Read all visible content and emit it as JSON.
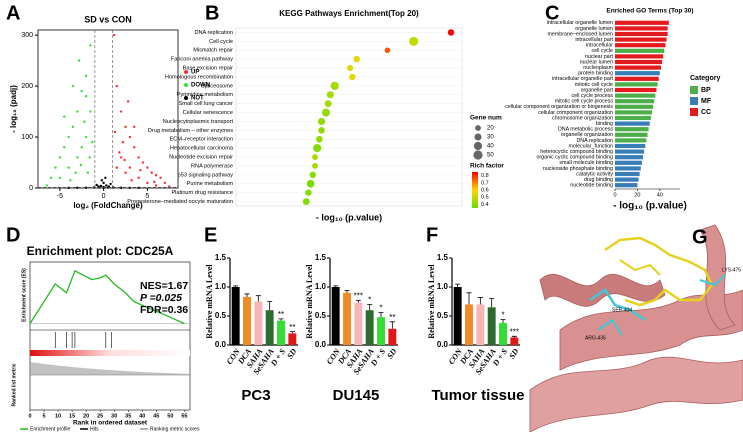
{
  "chart_data": [
    {
      "type": "scatter",
      "panel": "A",
      "title": "SD vs CON",
      "xlabel": "log₂ (FoldChange)",
      "ylabel": "- log₁₀ (padj)",
      "xlim": [
        -7.5,
        8.5
      ],
      "ylim": [
        0,
        310
      ],
      "xticks": [
        -5,
        0,
        5
      ],
      "yticks": [
        0,
        100,
        200,
        300
      ],
      "thresholds_x": [
        -1,
        1
      ],
      "threshold_y": 1.3,
      "series": [
        {
          "name": "UP",
          "color": "#ff2a3a",
          "x": [
            1.2,
            2,
            2.5,
            3,
            3.5,
            4,
            4.5,
            5,
            5.5,
            6,
            6.5,
            7,
            2,
            3,
            1.5,
            2.2,
            4,
            5,
            3.5,
            2.8,
            6,
            7.5,
            1.5,
            2.5,
            1.3,
            1.8,
            3.2,
            4.2,
            5.8,
            2.4
          ],
          "values": [
            300,
            150,
            120,
            100,
            80,
            60,
            50,
            40,
            30,
            25,
            20,
            10,
            60,
            40,
            200,
            90,
            20,
            10,
            120,
            170,
            5,
            3,
            40,
            30,
            110,
            70,
            15,
            35,
            12,
            55
          ]
        },
        {
          "name": "DOWN",
          "color": "#33e033",
          "x": [
            -1.5,
            -2,
            -2.5,
            -3,
            -3.5,
            -4,
            -4.5,
            -5,
            -5.5,
            -6,
            -2,
            -3,
            -1.5,
            -2.5,
            -4,
            -5,
            -3.5,
            -2.8,
            -1.8,
            -6.5,
            -2,
            -4.5,
            -1.3,
            -2.2,
            -3.2,
            -1.6,
            -3.8,
            -2.6
          ],
          "values": [
            280,
            220,
            190,
            150,
            120,
            100,
            80,
            60,
            40,
            20,
            100,
            60,
            150,
            80,
            40,
            20,
            200,
            250,
            30,
            5,
            180,
            140,
            90,
            130,
            30,
            60,
            15,
            45
          ]
        },
        {
          "name": "NOT",
          "color": "#000000",
          "x": [
            0,
            0.5,
            -0.5,
            0.3,
            -0.3,
            0.8,
            -0.8,
            0,
            2,
            -2,
            4,
            -4,
            0.2,
            -0.2,
            0,
            0.6,
            -0.6,
            3,
            -3,
            1.1,
            -1.1
          ],
          "values": [
            2,
            1,
            1,
            5,
            4,
            8,
            6,
            10,
            0.5,
            0.5,
            0.3,
            0.3,
            20,
            15,
            0.2,
            3,
            3,
            0.4,
            0.4,
            1,
            1
          ]
        }
      ]
    },
    {
      "type": "dot",
      "panel": "B",
      "title": "KEGG Pathways Enrichment(Top 20)",
      "xlabel": "- log₁₀ (p.value)",
      "xlim": [
        0,
        10.3
      ],
      "categories": [
        "DNA replication",
        "Cell cycle",
        "Mismatch repair",
        "Fanconi anemia pathway",
        "Base excision repair",
        "Homologous recombination",
        "Spliceosome",
        "Pyrimidine metabolism",
        "Small cell lung cancer",
        "Cellular senescence",
        "Nucleocytoplasmic transport",
        "Drug metabolism – other enzymes",
        "ECM–receptor interaction",
        "Hepatocellular carcinoma",
        "Nucleotide excision repair",
        "RNA polymerase",
        "p53 signaling pathway",
        "Purine metabolism",
        "Platinum drug resistance",
        "Progesterone–mediated oocyte maturation"
      ],
      "values": [
        9.8,
        8.1,
        6.9,
        5.5,
        5.2,
        5.3,
        4.5,
        4.3,
        4.2,
        4.1,
        3.9,
        3.9,
        3.8,
        3.7,
        3.6,
        3.6,
        3.5,
        3.4,
        3.3,
        3.2
      ],
      "sizes": [
        25,
        48,
        18,
        25,
        22,
        24,
        40,
        30,
        28,
        38,
        30,
        25,
        26,
        40,
        20,
        20,
        24,
        35,
        24,
        28
      ],
      "rich_factor": [
        0.85,
        0.5,
        0.75,
        0.55,
        0.55,
        0.55,
        0.45,
        0.45,
        0.45,
        0.42,
        0.42,
        0.42,
        0.42,
        0.4,
        0.45,
        0.45,
        0.4,
        0.38,
        0.4,
        0.4
      ],
      "size_legend_title": "Gene num",
      "size_ticks": [
        20,
        30,
        40,
        50
      ],
      "color_legend_title": "Rich factor",
      "color_ticks": [
        0.8,
        0.7,
        0.6,
        0.5,
        0.4
      ],
      "color_lim": [
        0.35,
        0.85
      ],
      "colors": [
        "#66dd00",
        "#ffd700",
        "#ff0000"
      ]
    },
    {
      "type": "hbar",
      "panel": "C",
      "title": "Enriched GO Terms (Top 30)",
      "xlabel": "- log₁₀ (p.value)",
      "xlim": [
        0,
        58
      ],
      "xticks": [
        0,
        20,
        40
      ],
      "categories": [
        "intracellular organelle lumen",
        "organelle lumen",
        "membrane−enclosed lumen",
        "intracellular part",
        "intracellular",
        "cell cycle",
        "nuclear part",
        "nuclear lumen",
        "nucleoplasm",
        "protein binding",
        "intracellular organelle part",
        "mitotic cell cycle",
        "organelle part",
        "cell cycle process",
        "mitotic cell cycle process",
        "cellular component organization or biogenesis",
        "cellular component organization",
        "chromosome organization",
        "binding",
        "DNA metabolic process",
        "organelle organization",
        "DNA replication",
        "molecular_function",
        "heterocyclic compound binding",
        "organic cyclic compound binding",
        "small molecule binding",
        "nucleoside phosphate binding",
        "catalytic activity",
        "drug binding",
        "nucleotide binding"
      ],
      "values": [
        48,
        47,
        47,
        46,
        45,
        44,
        43,
        42,
        41,
        40,
        39,
        38,
        37,
        36,
        35,
        34,
        33,
        32,
        31,
        30,
        29,
        28,
        27,
        26,
        25,
        24,
        23,
        22,
        21,
        20
      ],
      "groups": [
        "CC",
        "CC",
        "CC",
        "CC",
        "CC",
        "BP",
        "CC",
        "CC",
        "CC",
        "MF",
        "CC",
        "BP",
        "CC",
        "BP",
        "BP",
        "BP",
        "BP",
        "BP",
        "MF",
        "BP",
        "BP",
        "BP",
        "MF",
        "MF",
        "MF",
        "MF",
        "MF",
        "MF",
        "MF",
        "MF"
      ],
      "legend_title": "Category",
      "legend": [
        {
          "name": "BP",
          "color": "#4daf4a"
        },
        {
          "name": "MF",
          "color": "#377eb8"
        },
        {
          "name": "CC",
          "color": "#e41a1c"
        }
      ]
    },
    {
      "type": "gsea",
      "panel": "D",
      "title": "Enrichment plot: CDC25A",
      "stats": [
        "NES=1.67",
        "P =0.025",
        "FDR=0.36"
      ],
      "ylabel": "Enrichment score (ES)",
      "ylabel2": "Ranked list metric",
      "xlabel": "Rank in ordered dataset",
      "xlim": [
        0,
        57
      ],
      "xticks": [
        0,
        5,
        10,
        15,
        20,
        25,
        30,
        35,
        40,
        45,
        50,
        55
      ],
      "ylim": [
        -0.05,
        0.7
      ],
      "x": [
        0,
        3,
        6,
        9,
        11,
        13,
        16,
        19,
        22,
        25,
        27,
        30,
        34,
        37,
        42,
        48,
        55
      ],
      "values": [
        0,
        0.15,
        0.3,
        0.45,
        0.4,
        0.35,
        0.6,
        0.55,
        0.5,
        0.52,
        0.55,
        0.45,
        0.35,
        0.25,
        0.18,
        0.1,
        0
      ],
      "hits": [
        9,
        13,
        15,
        16,
        27,
        29
      ],
      "legend": [
        {
          "name": "Enrichment profile",
          "color": "#22bb22"
        },
        {
          "name": "Hits",
          "color": "#000000"
        },
        {
          "name": "Ranking metric scores",
          "color": "#999999"
        }
      ]
    },
    {
      "type": "bar",
      "panel": "E",
      "caption": "PC3",
      "ylabel": "Relative mRNA Level",
      "categories": [
        "CON",
        "DCA",
        "SAHA",
        "SeSAHA",
        "D + S",
        "SD"
      ],
      "values": [
        1.0,
        0.83,
        0.75,
        0.6,
        0.42,
        0.2
      ],
      "errors": [
        0.02,
        0.05,
        0.1,
        0.15,
        0.03,
        0.03
      ],
      "annotations": [
        null,
        null,
        null,
        null,
        "**",
        "**"
      ],
      "colors": [
        "#000000",
        "#f08a24",
        "#f7b5b5",
        "#2e6b2e",
        "#33dd33",
        "#e01818"
      ],
      "ylim": [
        0,
        1.5
      ],
      "yticks": [
        {
          "value": 0,
          "label": "0.0"
        },
        {
          "value": 0.5,
          "label": "0.5"
        },
        {
          "value": 1,
          "label": "1.0"
        },
        {
          "value": 1.5,
          "label": "1.5"
        }
      ]
    },
    {
      "type": "bar",
      "caption": "DU145",
      "ylabel": "Relative mRNA Level",
      "categories": [
        "CON",
        "DCA",
        "SAHA",
        "SeSAHA",
        "D + S",
        "SD"
      ],
      "values": [
        1.0,
        0.9,
        0.73,
        0.6,
        0.48,
        0.28
      ],
      "errors": [
        0.02,
        0.04,
        0.04,
        0.1,
        0.08,
        0.12
      ],
      "annotations": [
        null,
        null,
        "***",
        "*",
        "*",
        "**"
      ],
      "colors": [
        "#000000",
        "#f08a24",
        "#f7b5b5",
        "#2e6b2e",
        "#33dd33",
        "#e01818"
      ],
      "ylim": [
        0,
        1.5
      ],
      "yticks": [
        {
          "value": 0,
          "label": "0.0"
        },
        {
          "value": 0.5,
          "label": "0.5"
        },
        {
          "value": 1,
          "label": "1.0"
        },
        {
          "value": 1.5,
          "label": "1.5"
        }
      ]
    },
    {
      "type": "bar",
      "panel": "F",
      "caption": "Tumor tissue",
      "ylabel": "Relative mRNA Level",
      "categories": [
        "CON",
        "DCA",
        "SAHA",
        "SeSAHA",
        "D + S",
        "SD"
      ],
      "values": [
        1.0,
        0.7,
        0.7,
        0.65,
        0.38,
        0.13
      ],
      "errors": [
        0.05,
        0.2,
        0.12,
        0.15,
        0.06,
        0.02
      ],
      "annotations": [
        null,
        null,
        null,
        null,
        "*",
        "***"
      ],
      "colors": [
        "#000000",
        "#f08a24",
        "#f7b5b5",
        "#2e6b2e",
        "#33dd33",
        "#e01818"
      ],
      "ylim": [
        0,
        1.5
      ],
      "yticks": [
        {
          "value": 0,
          "label": "0.0"
        },
        {
          "value": 0.5,
          "label": "0.5"
        },
        {
          "value": 1,
          "label": "1.0"
        },
        {
          "value": 1.5,
          "label": "1.5"
        }
      ]
    }
  ],
  "structure": {
    "panel": "G",
    "residues": [
      "ARG-436",
      "SER-434",
      "LYS-475"
    ]
  }
}
